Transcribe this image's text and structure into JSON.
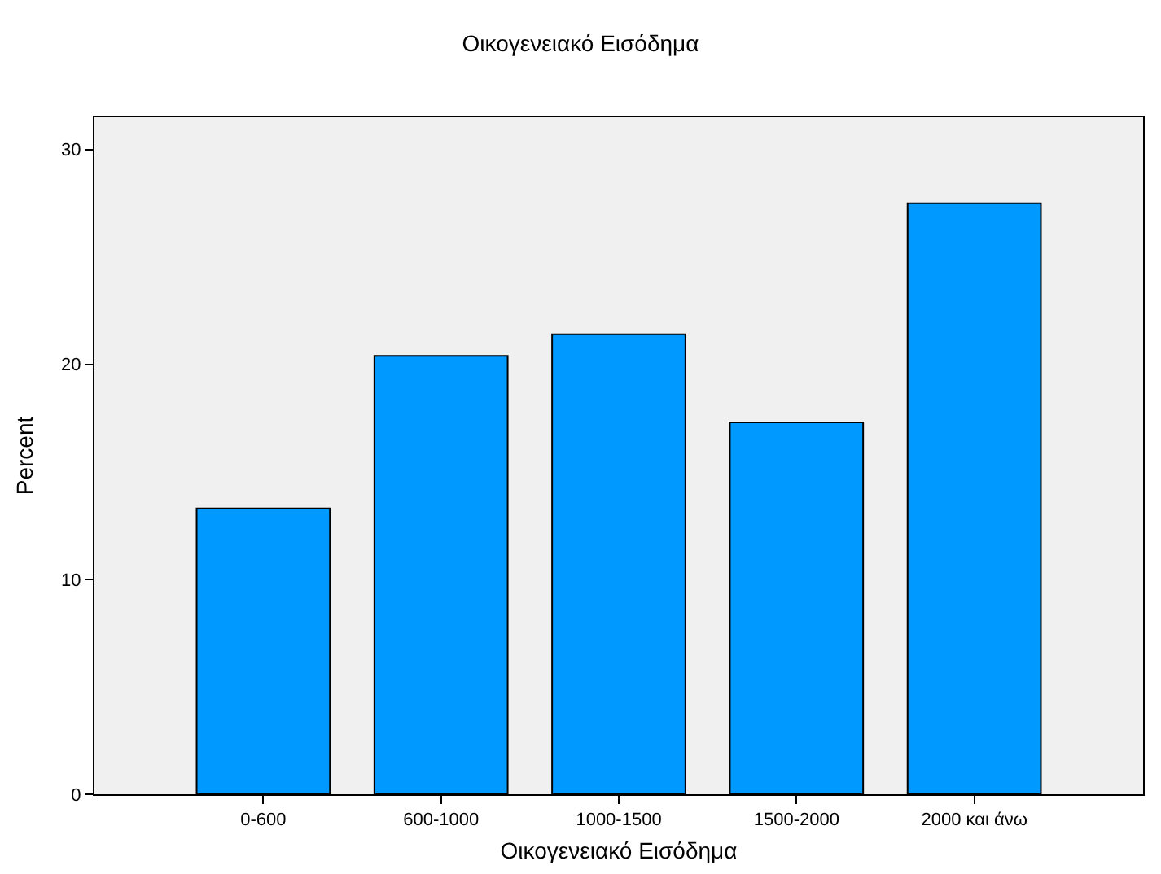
{
  "chart_data": {
    "type": "bar",
    "title": "Οικογενειακό Εισόδημα",
    "xlabel": "Οικογενειακό Εισόδημα",
    "ylabel": "Percent",
    "categories": [
      "0-600",
      "600-1000",
      "1000-1500",
      "1500-2000",
      "2000 και άνω"
    ],
    "values": [
      13.3,
      20.4,
      21.4,
      17.3,
      27.5
    ],
    "color": "#0099ff",
    "ylim": [
      0,
      31.5
    ],
    "yticks": [
      0,
      10,
      20,
      30
    ],
    "grid": false
  }
}
